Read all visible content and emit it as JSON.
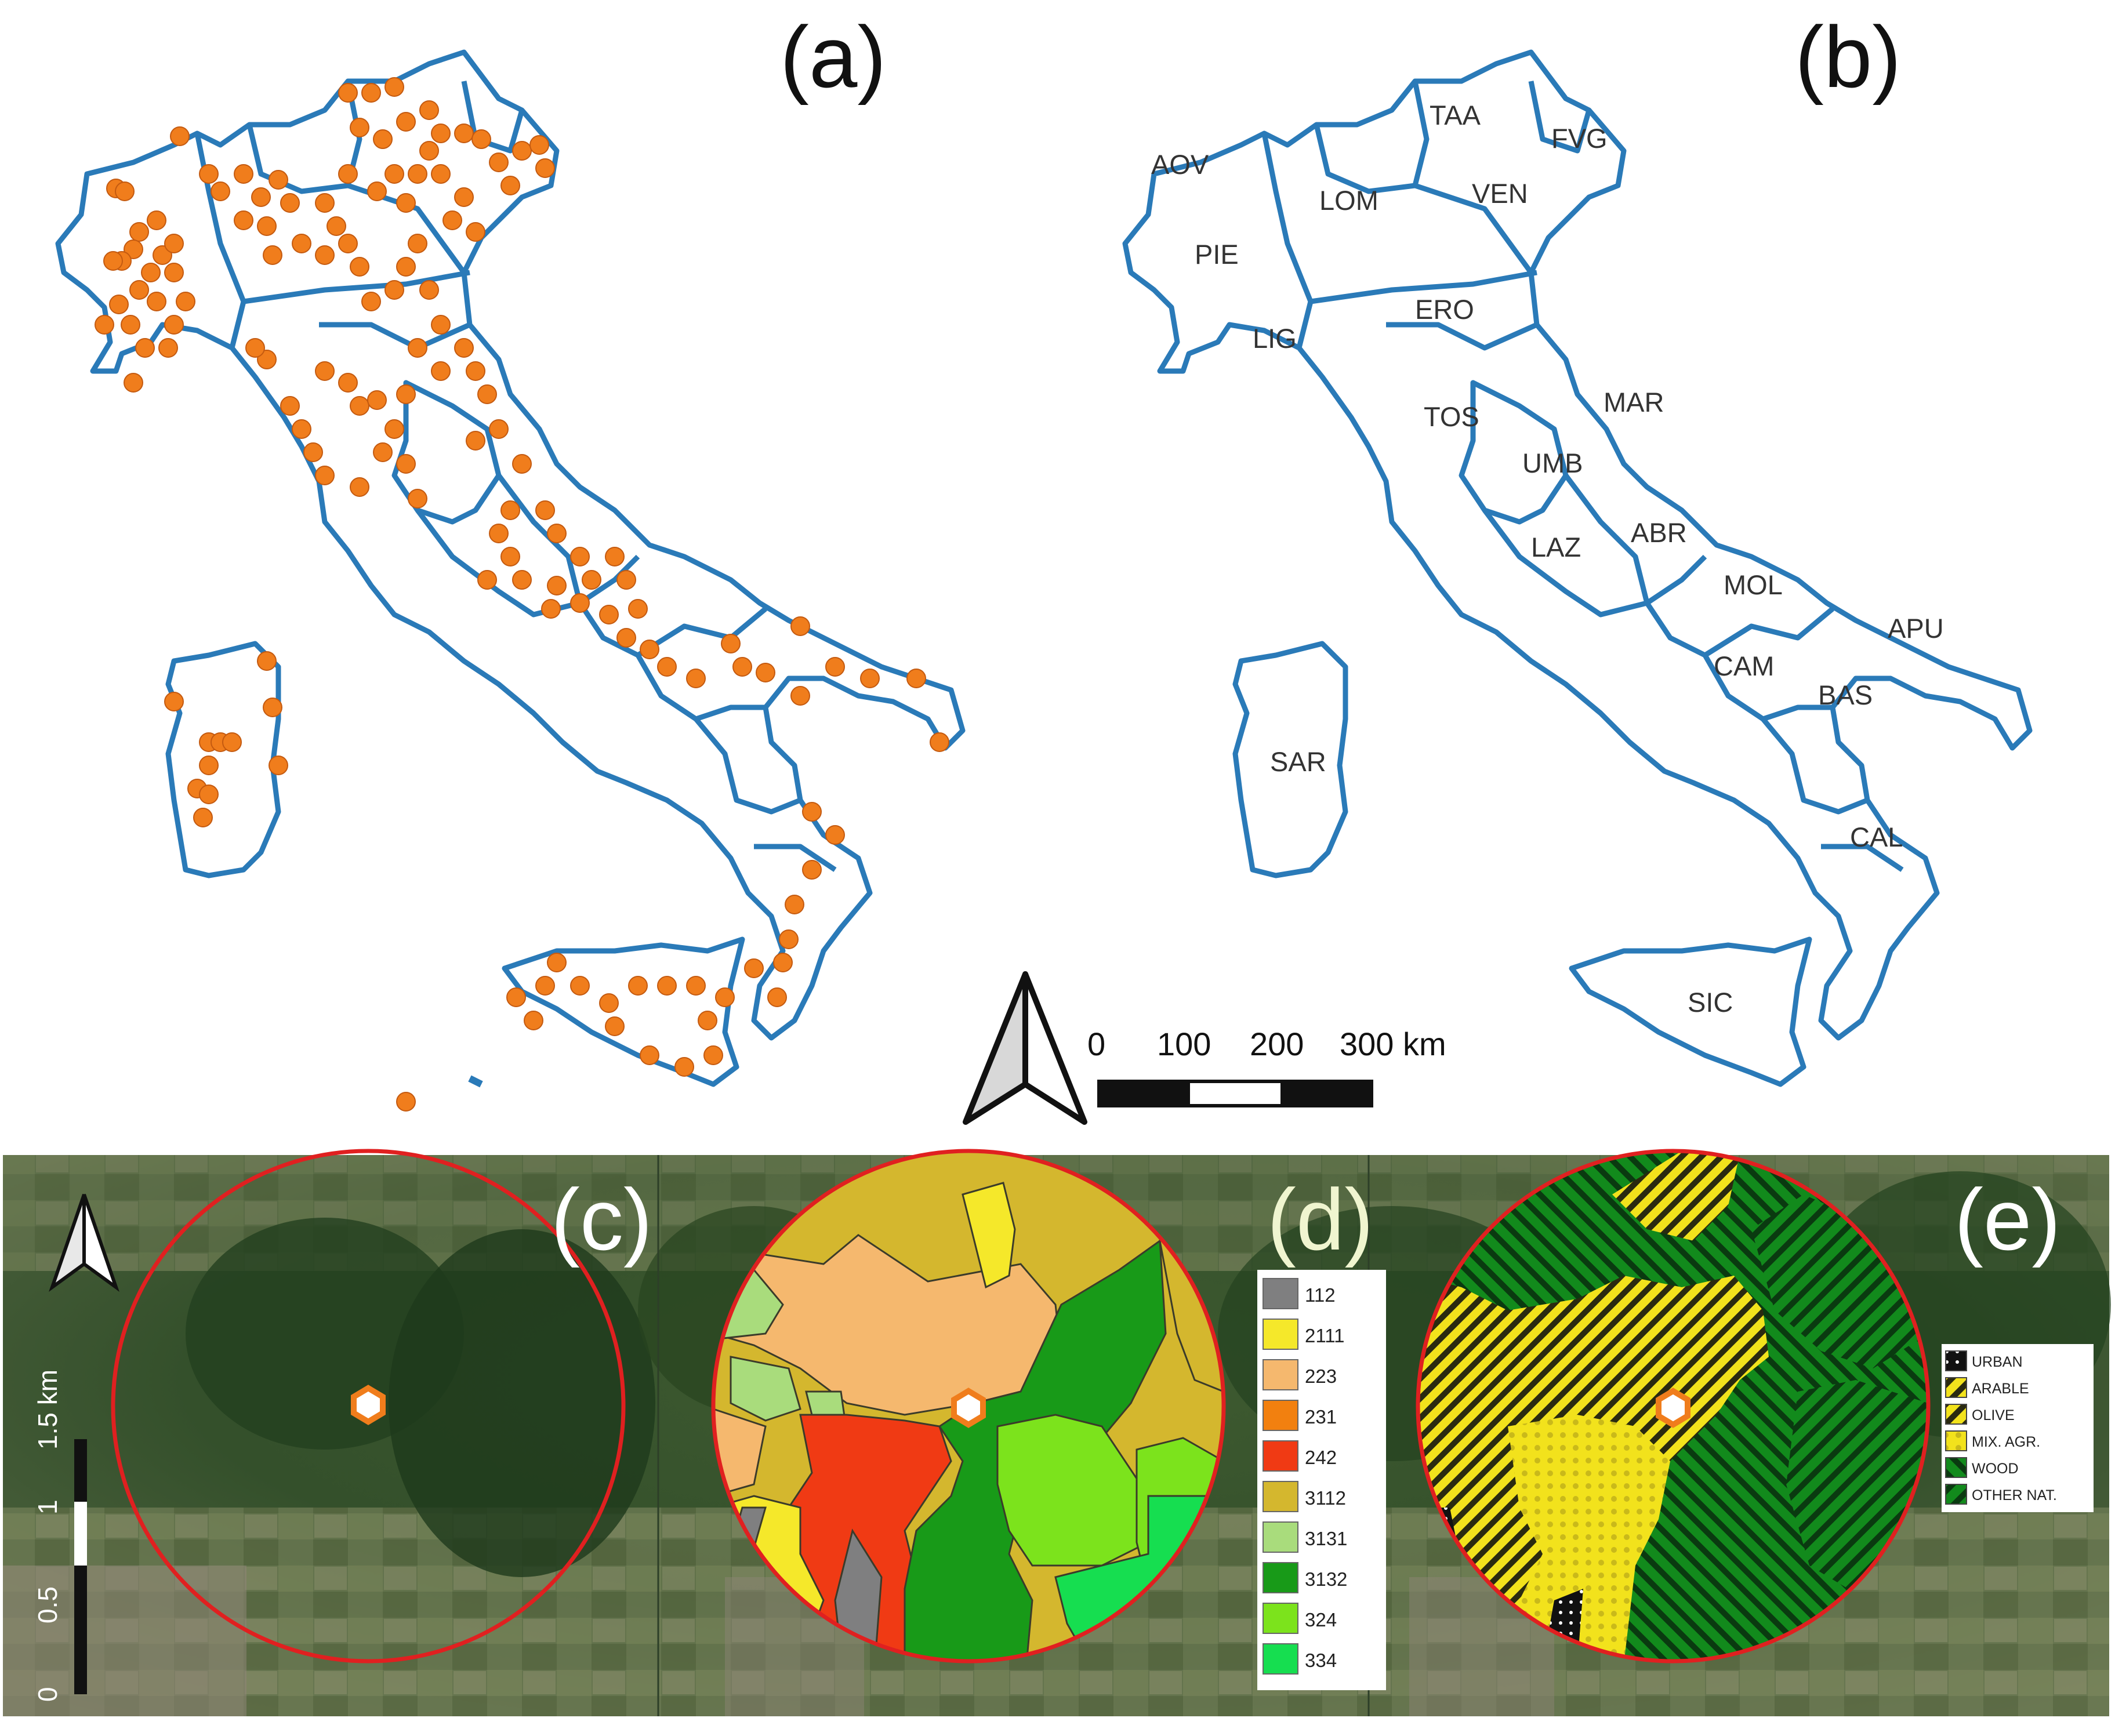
{
  "panels": {
    "a": "(a)",
    "b": "(b)",
    "c": "(c)",
    "d": "(d)",
    "e": "(e)"
  },
  "regions": [
    "AOV",
    "LOM",
    "TAA",
    "FVG",
    "VEN",
    "PIE",
    "ERO",
    "LIG",
    "TOS",
    "MAR",
    "UMB",
    "ABR",
    "LAZ",
    "MOL",
    "APU",
    "CAM",
    "BAS",
    "SAR",
    "CAL",
    "SIC"
  ],
  "scale_bar": {
    "ticks": [
      "0",
      "100",
      "200",
      "300 km"
    ]
  },
  "vertical_scale": {
    "ticks": [
      "0",
      "0.5",
      "1",
      "1.5 km"
    ]
  },
  "legend_d": {
    "items": [
      {
        "code": "112",
        "color": "#7f7f80"
      },
      {
        "code": "2111",
        "color": "#f5e82a"
      },
      {
        "code": "223",
        "color": "#f5b86e"
      },
      {
        "code": "231",
        "color": "#f2800f"
      },
      {
        "code": "242",
        "color": "#f03a14"
      },
      {
        "code": "3112",
        "color": "#d4b72e"
      },
      {
        "code": "3131",
        "color": "#a9dc7c"
      },
      {
        "code": "3132",
        "color": "#189a18"
      },
      {
        "code": "324",
        "color": "#7ce31c"
      },
      {
        "code": "334",
        "color": "#16de50"
      }
    ]
  },
  "legend_e": {
    "items": [
      {
        "label": "URBAN"
      },
      {
        "label": "ARABLE"
      },
      {
        "label": "OLIVE"
      },
      {
        "label": "MIX. AGR."
      },
      {
        "label": "WOOD"
      },
      {
        "label": "OTHER NAT."
      }
    ]
  },
  "colors": {
    "boundary": "#2a7ab8",
    "site_point": "#f07d1c",
    "buffer_circle": "#e02020"
  }
}
